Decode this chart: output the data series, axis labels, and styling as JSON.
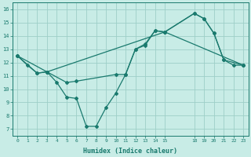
{
  "xlabel": "Humidex (Indice chaleur)",
  "xlim": [
    -0.5,
    23.5
  ],
  "ylim": [
    6.5,
    16.5
  ],
  "yticks": [
    7,
    8,
    9,
    10,
    11,
    12,
    13,
    14,
    15,
    16
  ],
  "xtick_positions": [
    0,
    1,
    2,
    3,
    4,
    5,
    6,
    7,
    8,
    9,
    10,
    11,
    12,
    13,
    14,
    15,
    18,
    19,
    20,
    21,
    22,
    23
  ],
  "xtick_labels": [
    "0",
    "1",
    "2",
    "3",
    "4",
    "5",
    "6",
    "7",
    "8",
    "9",
    "10",
    "11",
    "12",
    "13",
    "14",
    "15",
    "18",
    "19",
    "20",
    "21",
    "22",
    "23"
  ],
  "bg_color": "#c8ece6",
  "grid_color": "#9ecfc7",
  "line_color": "#1a7a6e",
  "line1_x": [
    0,
    1,
    2,
    3,
    4,
    5,
    6,
    7,
    8,
    9,
    10,
    11,
    12,
    13,
    14,
    15,
    18,
    19,
    20,
    21,
    22,
    23
  ],
  "line1_y": [
    12.5,
    11.8,
    11.2,
    11.3,
    10.5,
    9.4,
    9.3,
    7.2,
    7.2,
    8.6,
    9.7,
    11.1,
    13.0,
    13.4,
    14.4,
    14.3,
    15.7,
    15.3,
    14.2,
    12.2,
    11.8,
    11.8
  ],
  "line2_x": [
    0,
    2,
    3,
    5,
    6,
    10,
    11,
    12,
    13,
    14,
    15,
    18,
    19,
    20,
    21,
    23
  ],
  "line2_y": [
    12.5,
    11.2,
    11.3,
    10.5,
    10.6,
    11.1,
    11.1,
    13.0,
    13.3,
    14.4,
    14.3,
    15.7,
    15.3,
    14.2,
    12.2,
    11.8
  ],
  "line3_x": [
    0,
    3,
    15,
    23
  ],
  "line3_y": [
    12.5,
    11.3,
    14.3,
    11.8
  ]
}
